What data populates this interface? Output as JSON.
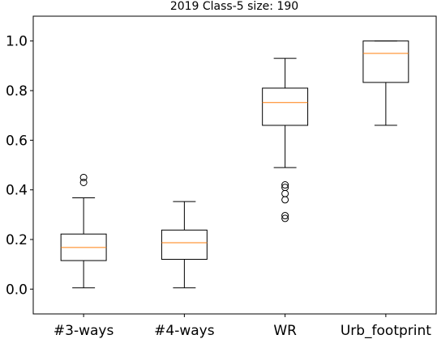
{
  "chart_data": {
    "type": "box",
    "title": "2019 Class-5 size: 190",
    "xlabel": "",
    "ylabel": "",
    "categories": [
      "#3-ways",
      "#4-ways",
      "WR",
      "Urb_footprint"
    ],
    "ylim": [
      -0.1,
      1.1
    ],
    "yticks": [
      0.0,
      0.2,
      0.4,
      0.6,
      0.8,
      1.0
    ],
    "ytick_labels": [
      "0.0",
      "0.2",
      "0.4",
      "0.6",
      "0.8",
      "1.0"
    ],
    "grid": false,
    "boxes": [
      {
        "whisker_low": 0.005,
        "q1": 0.115,
        "median": 0.168,
        "q3": 0.222,
        "whisker_high": 0.368,
        "fliers": [
          0.43,
          0.45
        ]
      },
      {
        "whisker_low": 0.005,
        "q1": 0.12,
        "median": 0.187,
        "q3": 0.238,
        "whisker_high": 0.353,
        "fliers": []
      },
      {
        "whisker_low": 0.49,
        "q1": 0.66,
        "median": 0.752,
        "q3": 0.81,
        "whisker_high": 0.93,
        "fliers": [
          0.285,
          0.296,
          0.36,
          0.385,
          0.41,
          0.42
        ]
      },
      {
        "whisker_low": 0.66,
        "q1": 0.833,
        "median": 0.95,
        "q3": 1.0,
        "whisker_high": 1.0,
        "fliers": []
      }
    ],
    "colors": {
      "box": "#000000",
      "median": "#ff7f0e",
      "flier": "#000000"
    }
  }
}
